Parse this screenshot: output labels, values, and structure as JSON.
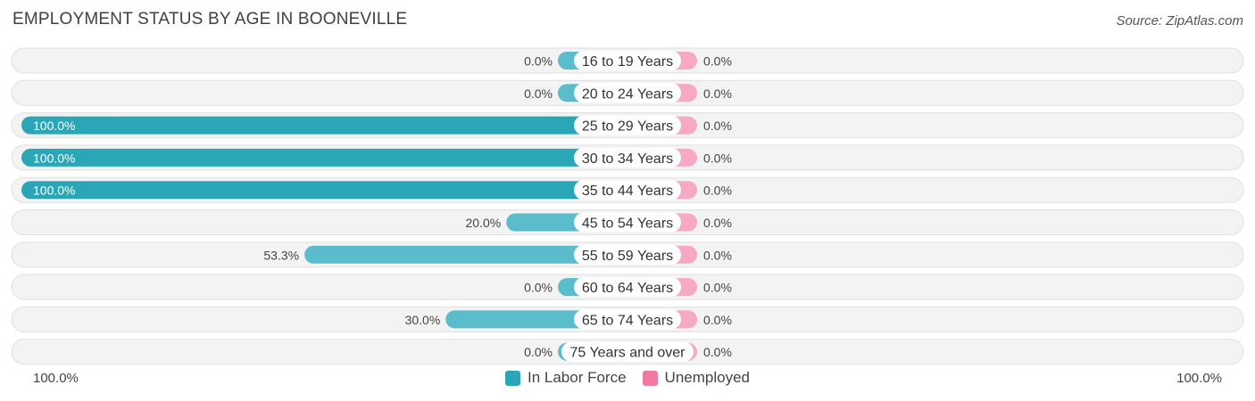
{
  "title": "EMPLOYMENT STATUS BY AGE IN BOONEVILLE",
  "source": "Source: ZipAtlas.com",
  "axis": {
    "left_label": "100.0%",
    "right_label": "100.0%"
  },
  "legend": {
    "labor_force": "In Labor Force",
    "unemployed": "Unemployed"
  },
  "colors": {
    "labor_force": "#5bbccb",
    "labor_force_strong": "#2aa6b7",
    "unemployed": "#f7a8c4",
    "unemployed_legend": "#f07aa3",
    "row_background": "#efefef",
    "row_border": "#e0e0e0"
  },
  "chart_data": {
    "type": "bar",
    "orientation": "horizontal-diverging",
    "categories": [
      "16 to 19 Years",
      "20 to 24 Years",
      "25 to 29 Years",
      "30 to 34 Years",
      "35 to 44 Years",
      "45 to 54 Years",
      "55 to 59 Years",
      "60 to 64 Years",
      "65 to 74 Years",
      "75 Years and over"
    ],
    "series": [
      {
        "name": "In Labor Force",
        "values": [
          0.0,
          0.0,
          100.0,
          100.0,
          100.0,
          20.0,
          53.3,
          0.0,
          30.0,
          0.0
        ],
        "labels": [
          "0.0%",
          "0.0%",
          "100.0%",
          "100.0%",
          "100.0%",
          "20.0%",
          "53.3%",
          "0.0%",
          "30.0%",
          "0.0%"
        ]
      },
      {
        "name": "Unemployed",
        "values": [
          0.0,
          0.0,
          0.0,
          0.0,
          0.0,
          0.0,
          0.0,
          0.0,
          0.0,
          0.0
        ],
        "labels": [
          "0.0%",
          "0.0%",
          "0.0%",
          "0.0%",
          "0.0%",
          "0.0%",
          "0.0%",
          "0.0%",
          "0.0%",
          "0.0%"
        ]
      }
    ],
    "xlim": [
      -100,
      100
    ],
    "legend_position": "bottom-center"
  }
}
